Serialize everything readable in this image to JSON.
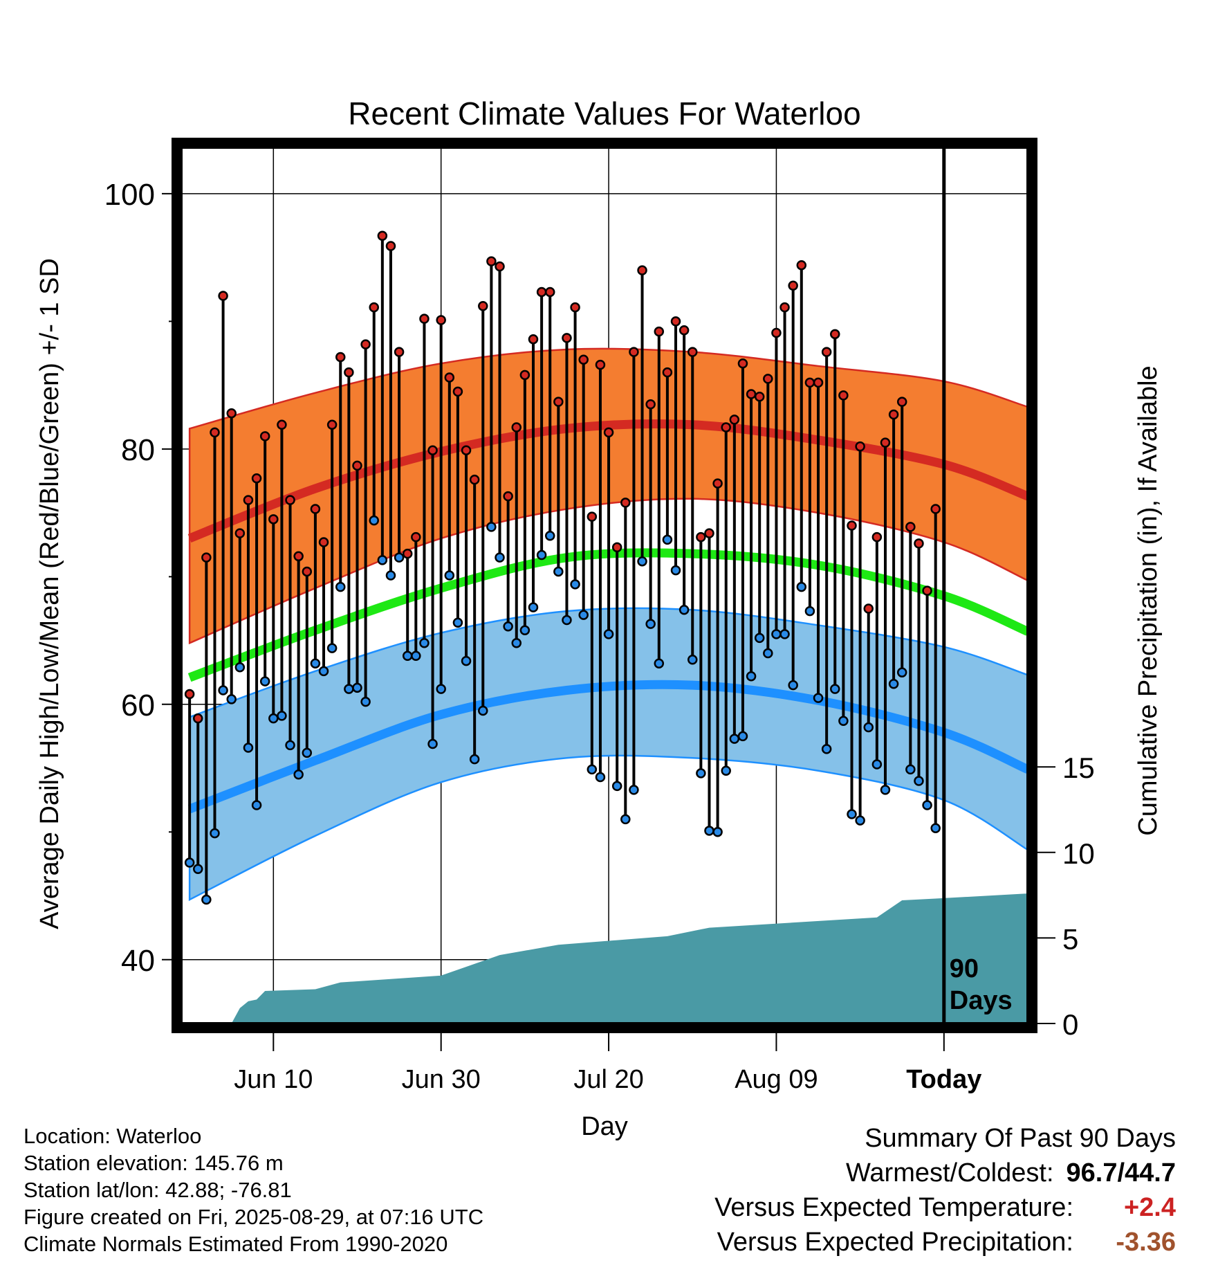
{
  "colors": {
    "high_normal": "#d42a22",
    "high_band": "#f47d30",
    "mean_normal": "#1ee814",
    "low_normal": "#1e90ff",
    "low_band": "#85c1e9",
    "precip_fill": "#4a9aa5",
    "high_dot": "#d42a22",
    "low_dot": "#2a8ae6",
    "bar": "#000000"
  },
  "chart_data": {
    "type": "line",
    "title": "Recent Climate Values For Waterloo",
    "xlabel": "Day",
    "ylabel": "Average Daily High/Low/Mean (Red/Blue/Green) +/- 1 SD",
    "y2label": "Cumulative Precipitation (in), If Available",
    "x_tick_labels": [
      "Jun 10",
      "Jun 30",
      "Jul 20",
      "Aug 09",
      "Today"
    ],
    "x_tick_dates": [
      "2025-06-10",
      "2025-06-30",
      "2025-07-20",
      "2025-08-09",
      "2025-08-29"
    ],
    "x_range": [
      "2025-05-30",
      "2025-09-08"
    ],
    "ylim": [
      35,
      102
    ],
    "y_ticks": [
      40,
      60,
      80,
      100
    ],
    "y2lim": [
      0,
      50
    ],
    "y2_ticks": [
      0,
      5,
      10,
      15
    ],
    "grid": true,
    "today_marker": "90\nDays",
    "start_date": "2025-05-31",
    "daily_high": [
      60.8,
      58.9,
      71.5,
      81.3,
      92.0,
      82.8,
      73.4,
      76.0,
      77.7,
      81.0,
      74.5,
      81.9,
      76.0,
      71.6,
      70.4,
      75.3,
      72.7,
      81.9,
      87.2,
      86.0,
      78.7,
      88.2,
      91.1,
      96.7,
      95.9,
      87.6,
      71.8,
      73.1,
      90.2,
      79.9,
      90.1,
      85.6,
      84.5,
      79.9,
      77.6,
      91.2,
      94.7,
      94.3,
      76.3,
      81.7,
      85.8,
      88.6,
      92.3,
      92.3,
      83.7,
      88.7,
      91.1,
      87.0,
      74.7,
      86.6,
      81.3,
      72.3,
      75.8,
      87.6,
      94.0,
      83.5,
      89.2,
      86.0,
      90.0,
      89.3,
      87.6,
      73.1,
      73.4,
      77.3,
      81.7,
      82.3,
      86.7,
      84.3,
      84.1,
      85.5,
      89.1,
      91.1,
      92.8,
      94.4,
      85.2,
      85.2,
      87.6,
      89.0,
      84.2,
      74.0,
      80.2,
      67.5,
      73.1,
      80.5,
      82.7,
      83.7,
      73.9,
      72.6,
      68.9,
      75.3
    ],
    "daily_low": [
      47.6,
      47.1,
      44.7,
      49.9,
      61.1,
      60.4,
      62.9,
      56.6,
      52.1,
      61.8,
      58.9,
      59.1,
      56.8,
      54.5,
      56.2,
      63.2,
      62.6,
      64.4,
      69.2,
      61.2,
      61.3,
      60.2,
      74.4,
      71.3,
      70.1,
      71.5,
      63.8,
      63.8,
      64.8,
      56.9,
      61.2,
      70.1,
      66.4,
      63.4,
      55.7,
      59.5,
      73.9,
      71.5,
      66.1,
      64.8,
      65.8,
      67.6,
      71.7,
      73.2,
      70.4,
      66.6,
      69.4,
      67.0,
      54.9,
      54.3,
      65.5,
      53.6,
      51.0,
      53.3,
      71.2,
      66.3,
      63.2,
      72.9,
      70.5,
      67.4,
      63.5,
      54.6,
      50.1,
      50.0,
      54.8,
      57.3,
      57.5,
      62.2,
      65.2,
      64.0,
      65.5,
      65.5,
      61.5,
      69.2,
      67.3,
      60.5,
      56.5,
      61.2,
      58.7,
      51.4,
      50.9,
      58.2,
      55.3,
      53.3,
      61.6,
      62.5,
      54.9,
      54.0,
      52.1,
      50.3
    ],
    "normals": {
      "x": [
        "2025-05-31",
        "2025-06-15",
        "2025-06-30",
        "2025-07-15",
        "2025-07-30",
        "2025-08-14",
        "2025-08-29",
        "2025-09-08"
      ],
      "high_mean": [
        73.0,
        76.9,
        79.8,
        81.6,
        81.9,
        80.7,
        78.8,
        76.3
      ],
      "high_upper": [
        81.6,
        84.4,
        86.7,
        87.8,
        87.6,
        86.5,
        85.3,
        83.3
      ],
      "high_lower": [
        64.8,
        69.1,
        73.0,
        75.3,
        76.1,
        75.0,
        72.7,
        69.7
      ],
      "mean": [
        62.1,
        65.8,
        69.1,
        71.5,
        71.8,
        70.9,
        68.5,
        65.7
      ],
      "low_mean": [
        51.8,
        55.6,
        59.2,
        61.1,
        61.5,
        60.3,
        57.8,
        54.9
      ],
      "low_upper": [
        59.0,
        62.6,
        65.6,
        67.3,
        67.4,
        66.2,
        64.5,
        62.3
      ],
      "low_lower": [
        44.7,
        49.7,
        53.9,
        55.8,
        55.8,
        54.8,
        52.5,
        48.6
      ]
    },
    "precip_cumulative": {
      "x": [
        "2025-05-31",
        "2025-06-05",
        "2025-06-06",
        "2025-06-07",
        "2025-06-08",
        "2025-06-09",
        "2025-06-15",
        "2025-06-18",
        "2025-06-24",
        "2025-06-30",
        "2025-07-07",
        "2025-07-14",
        "2025-07-27",
        "2025-08-01",
        "2025-08-21",
        "2025-08-24",
        "2025-08-28",
        "2025-09-08"
      ],
      "values": [
        0,
        0,
        0.9,
        1.3,
        1.4,
        1.9,
        2.0,
        2.4,
        2.6,
        2.8,
        4.0,
        4.6,
        5.1,
        5.6,
        6.2,
        7.2,
        7.3,
        7.6
      ]
    }
  },
  "footer": {
    "location": "Location: Waterloo",
    "elevation": "Station elevation: 145.76 m",
    "latlon": "Station lat/lon: 42.88; -76.81",
    "created": "Figure created on Fri, 2025-08-29, at 07:16 UTC",
    "normals": "Climate Normals Estimated From 1990-2020"
  },
  "summary": {
    "heading": "Summary Of Past 90 Days",
    "warm_cold_label": "Warmest/Coldest:",
    "warm_cold_value": "96.7/44.7",
    "temp_label": "Versus Expected Temperature:",
    "temp_value": "+2.4",
    "precip_label": "Versus Expected Precipitation:",
    "precip_value": "-3.36"
  }
}
